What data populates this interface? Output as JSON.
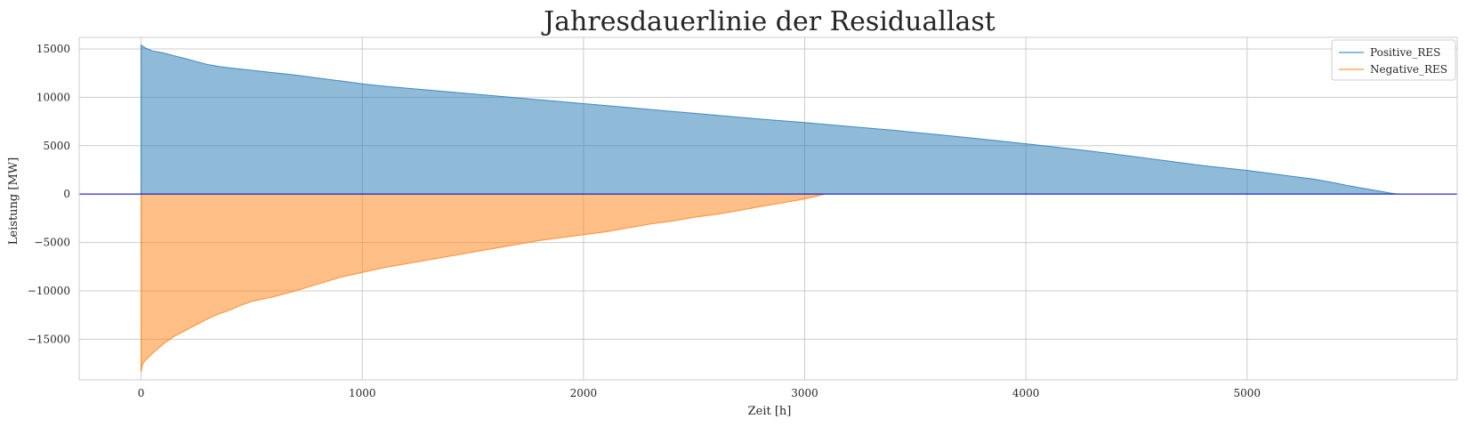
{
  "chart_data": {
    "type": "area",
    "title": "Jahresdauerlinie der Residuallast",
    "xlabel": "Zeit [h]",
    "ylabel": "Leistung [MW]",
    "xlim": [
      -280,
      5950
    ],
    "ylim": [
      -19200,
      16200
    ],
    "xticks": [
      0,
      1000,
      2000,
      3000,
      4000,
      5000
    ],
    "yticks": [
      15000,
      10000,
      5000,
      0,
      -5000,
      -10000,
      -15000
    ],
    "xtick_labels": [
      "0",
      "1000",
      "2000",
      "3000",
      "4000",
      "5000"
    ],
    "ytick_labels": [
      "15000",
      "10000",
      "5000",
      "0",
      "−5000",
      "−10000",
      "−15000"
    ],
    "grid": true,
    "legend_position": "top-right",
    "zero_line_color": "#0000cc",
    "series": [
      {
        "name": "Positive_RES",
        "line_color": "#1f77b4",
        "fill_color": "#1f77b4",
        "x": [
          0,
          20,
          50,
          100,
          150,
          200,
          250,
          300,
          350,
          400,
          500,
          600,
          700,
          800,
          900,
          1000,
          1100,
          1200,
          1300,
          1400,
          1500,
          1600,
          1700,
          1800,
          1900,
          2000,
          2200,
          2400,
          2600,
          2800,
          3000,
          3200,
          3400,
          3600,
          3800,
          4000,
          4200,
          4400,
          4600,
          4800,
          5000,
          5100,
          5200,
          5300,
          5400,
          5450,
          5500,
          5550,
          5600,
          5650,
          5680
        ],
        "y": [
          15400,
          15100,
          14800,
          14600,
          14300,
          14000,
          13700,
          13400,
          13200,
          13050,
          12800,
          12550,
          12300,
          12000,
          11700,
          11400,
          11150,
          10950,
          10750,
          10550,
          10350,
          10150,
          9950,
          9750,
          9550,
          9350,
          8950,
          8550,
          8150,
          7750,
          7400,
          7000,
          6600,
          6150,
          5700,
          5200,
          4700,
          4150,
          3550,
          2950,
          2450,
          2150,
          1850,
          1550,
          1150,
          900,
          700,
          500,
          300,
          100,
          0
        ]
      },
      {
        "name": "Negative_RES",
        "line_color": "#ff7f0e",
        "fill_color": "#ff7f0e",
        "x": [
          0,
          5,
          15,
          50,
          100,
          150,
          200,
          250,
          300,
          350,
          400,
          450,
          500,
          600,
          700,
          800,
          900,
          1000,
          1100,
          1200,
          1300,
          1400,
          1500,
          1600,
          1700,
          1800,
          1900,
          2000,
          2100,
          2200,
          2300,
          2400,
          2500,
          2600,
          2700,
          2800,
          2900,
          3000,
          3050,
          3090
        ],
        "y": [
          -18400,
          -17700,
          -17300,
          -16500,
          -15500,
          -14700,
          -14100,
          -13500,
          -12900,
          -12400,
          -12000,
          -11500,
          -11100,
          -10600,
          -10000,
          -9300,
          -8600,
          -8100,
          -7600,
          -7200,
          -6800,
          -6400,
          -6000,
          -5600,
          -5200,
          -4800,
          -4500,
          -4200,
          -3900,
          -3500,
          -3100,
          -2800,
          -2400,
          -2100,
          -1700,
          -1300,
          -900,
          -500,
          -250,
          0
        ]
      }
    ]
  }
}
